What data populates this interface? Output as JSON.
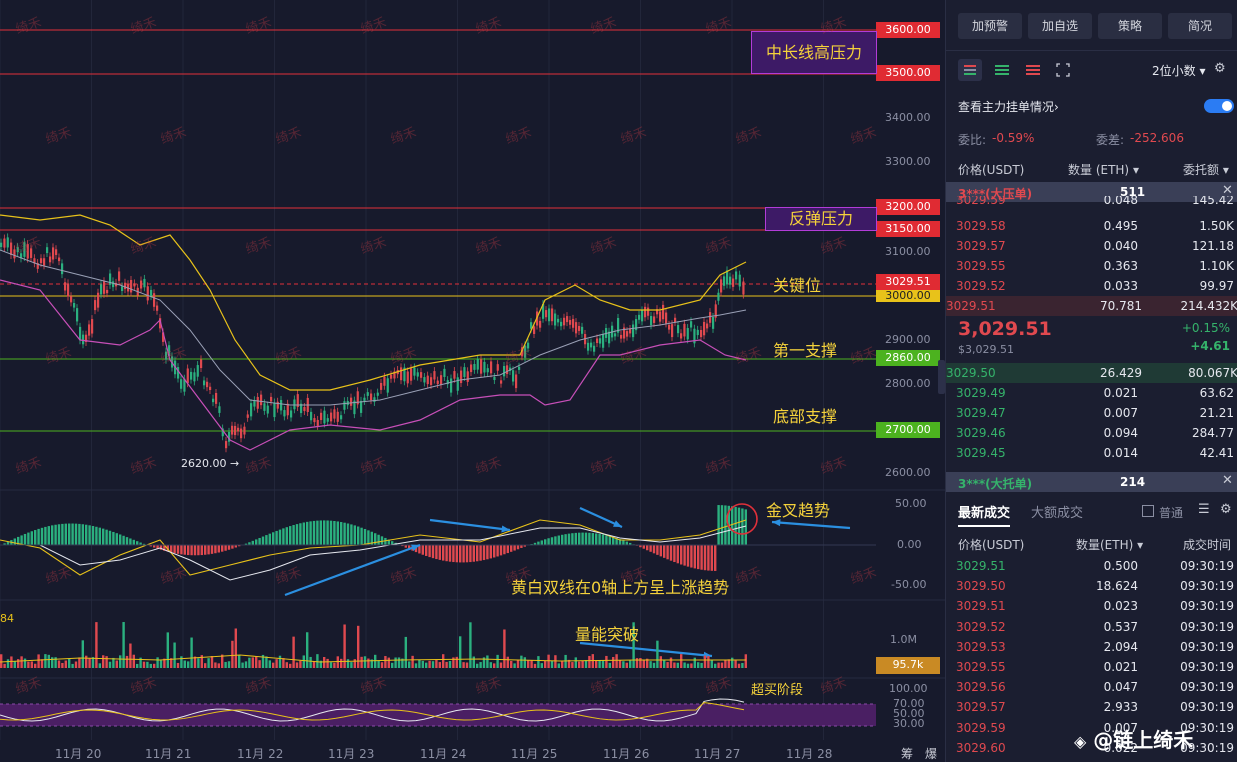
{
  "chart": {
    "price_levels": [
      {
        "label": "3600.00",
        "style": "red"
      },
      {
        "label": "3500.00",
        "style": "red"
      },
      {
        "label": "3200.00",
        "style": "red"
      },
      {
        "label": "3150.00",
        "style": "red"
      },
      {
        "label": "3029.51",
        "style": "red"
      },
      {
        "label": "3000.00",
        "style": "yellow"
      },
      {
        "label": "2860.00",
        "style": "green"
      },
      {
        "label": "2700.00",
        "style": "green"
      }
    ],
    "axis_prices": [
      "3400.00",
      "3300.00",
      "3100.00",
      "2900.00",
      "2800.00",
      "2600.00"
    ],
    "macd_axis": [
      "50.00",
      "0.00",
      "-50.00"
    ],
    "volume_axis": [
      "1.0M"
    ],
    "volume_tag": "95.7k",
    "rsi_axis": [
      "100.00",
      "70.00",
      "50.00",
      "30.00"
    ],
    "dates": [
      "11月 20",
      "11月 21",
      "11月 22",
      "11月 23",
      "11月 24",
      "11月 25",
      "11月 26",
      "11月 27",
      "11月 28"
    ],
    "low_marker": "2620.00 →",
    "left_volume_label": "84",
    "corner_labels": [
      "筹",
      "爆"
    ],
    "watermark": "绮禾",
    "annotations": {
      "long_pressure": "中长线高压力",
      "rebound_pressure": "反弹压力",
      "key_level": "关键位",
      "first_support": "第一支撑",
      "bottom_support": "底部支撑",
      "golden_cross": "金叉趋势",
      "macd_note": "黄白双线在0轴上方呈上涨趋势",
      "volume_break": "量能突破",
      "overbought": "超买阶段"
    }
  },
  "side": {
    "buttons": [
      "加预警",
      "加自选",
      "策略",
      "简况"
    ],
    "precision": "2位小数",
    "main_orders": "查看主力挂单情况",
    "ratio_label": "委比:",
    "ratio_value": "-0.59%",
    "diff_label": "委差:",
    "diff_value": "-252.606",
    "headers": {
      "price": "价格(USDT)",
      "qty": "数量 (ETH)",
      "amount": "委托额"
    },
    "big_ask": {
      "label": "3***(大压单)",
      "value": "511"
    },
    "asks": [
      {
        "price": "3029.59",
        "qty": "0.048",
        "amt": "145.42"
      },
      {
        "price": "3029.58",
        "qty": "0.495",
        "amt": "1.50K"
      },
      {
        "price": "3029.57",
        "qty": "0.040",
        "amt": "121.18"
      },
      {
        "price": "3029.55",
        "qty": "0.363",
        "amt": "1.10K"
      },
      {
        "price": "3029.52",
        "qty": "0.033",
        "amt": "99.97"
      },
      {
        "price": "3029.51",
        "qty": "70.781",
        "amt": "214.432K"
      }
    ],
    "last_price": "3,029.51",
    "last_price_sub": "$3,029.51",
    "change_pct": "+0.15%",
    "change_abs": "+4.61",
    "bids": [
      {
        "price": "3029.50",
        "qty": "26.429",
        "amt": "80.067K"
      },
      {
        "price": "3029.49",
        "qty": "0.021",
        "amt": "63.62"
      },
      {
        "price": "3029.47",
        "qty": "0.007",
        "amt": "21.21"
      },
      {
        "price": "3029.46",
        "qty": "0.094",
        "amt": "284.77"
      },
      {
        "price": "3029.45",
        "qty": "0.014",
        "amt": "42.41"
      }
    ],
    "big_bid": {
      "label": "3***(大托单)",
      "value": "214"
    },
    "trade_tabs": [
      "最新成交",
      "大额成交"
    ],
    "normal_label": "普通",
    "trade_headers": {
      "price": "价格(USDT)",
      "qty": "数量(ETH)",
      "time": "成交时间"
    },
    "trades": [
      {
        "price": "3029.51",
        "qty": "0.500",
        "time": "09:30:19",
        "side": "buy"
      },
      {
        "price": "3029.50",
        "qty": "18.624",
        "time": "09:30:19",
        "side": "sell"
      },
      {
        "price": "3029.51",
        "qty": "0.023",
        "time": "09:30:19",
        "side": "sell"
      },
      {
        "price": "3029.52",
        "qty": "0.537",
        "time": "09:30:19",
        "side": "sell"
      },
      {
        "price": "3029.53",
        "qty": "2.094",
        "time": "09:30:19",
        "side": "sell"
      },
      {
        "price": "3029.55",
        "qty": "0.021",
        "time": "09:30:19",
        "side": "sell"
      },
      {
        "price": "3029.56",
        "qty": "0.047",
        "time": "09:30:19",
        "side": "sell"
      },
      {
        "price": "3029.57",
        "qty": "2.933",
        "time": "09:30:19",
        "side": "sell"
      },
      {
        "price": "3029.59",
        "qty": "0.007",
        "time": "09:30:19",
        "side": "sell"
      },
      {
        "price": "3029.60",
        "qty": "0.022",
        "time": "09:30:19",
        "side": "sell"
      }
    ],
    "brand": "@链上绮禾"
  }
}
